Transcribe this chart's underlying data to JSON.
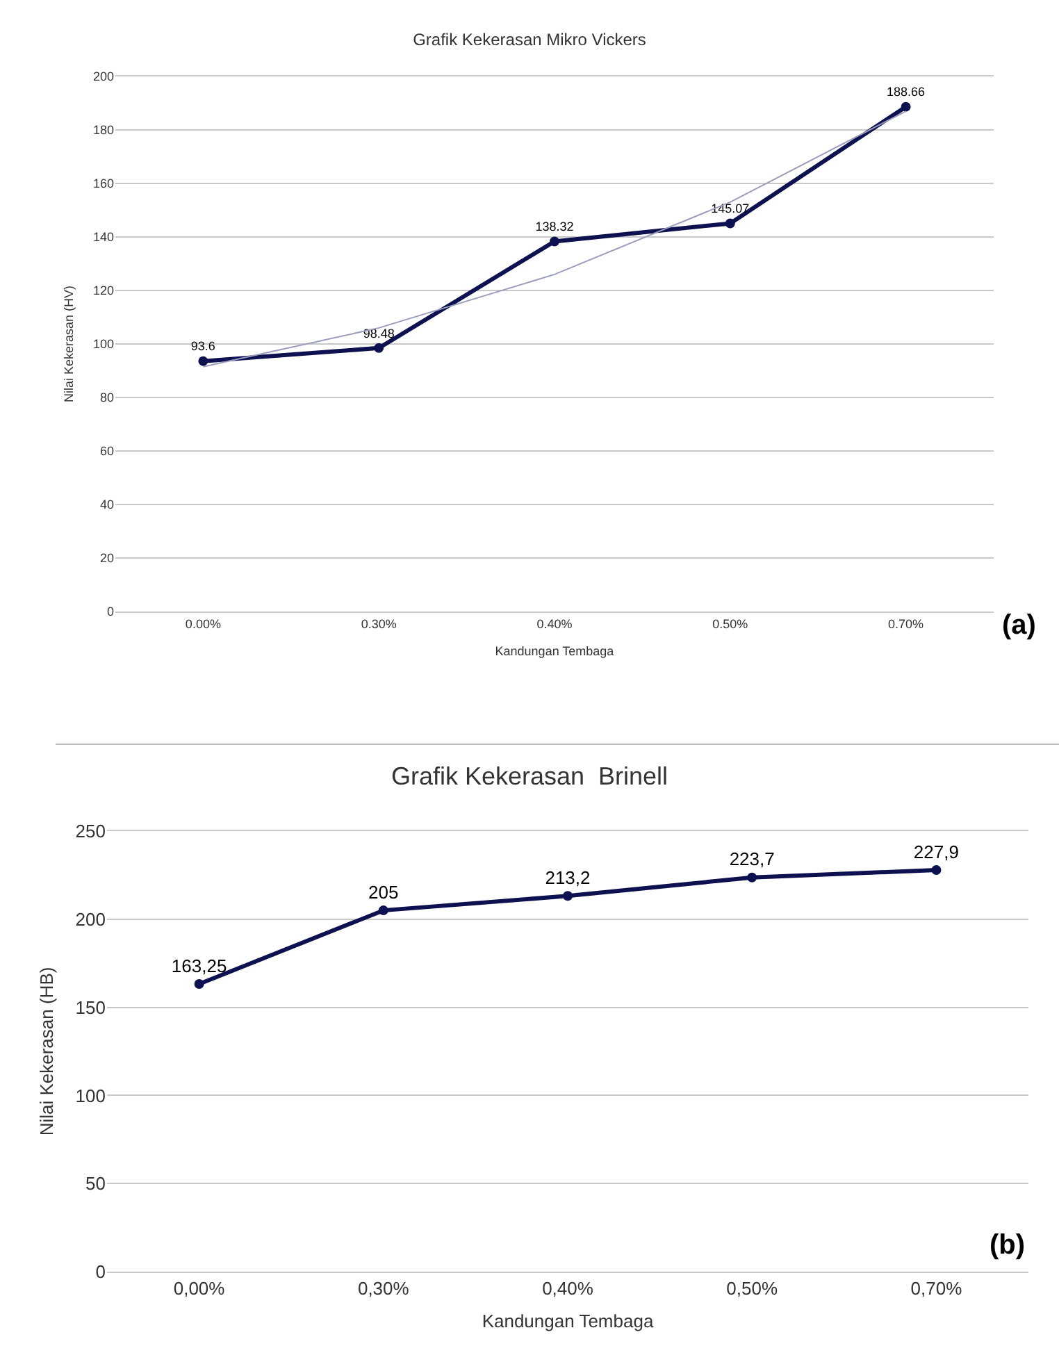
{
  "chart_data": [
    {
      "type": "line",
      "title": "Grafik Kekerasan Mikro Vickers",
      "xlabel": "Kandungan Tembaga",
      "ylabel": "Nilai Kekerasan (HV)",
      "categories": [
        "0.00%",
        "0.30%",
        "0.40%",
        "0.50%",
        "0.70%"
      ],
      "ylim": [
        0,
        200
      ],
      "yticks": [
        0,
        20,
        40,
        60,
        80,
        100,
        120,
        140,
        160,
        180,
        200
      ],
      "grid": "y",
      "series": [
        {
          "color": "#0d1150",
          "values": [
            93.6,
            98.48,
            138.32,
            145.07,
            188.66
          ],
          "marker": "circle",
          "data_labels": true
        },
        {
          "color": "#9a9cbc",
          "values": [
            91.5,
            106,
            126,
            153,
            187
          ],
          "marker": "none"
        }
      ],
      "annotations": [
        "(a)"
      ]
    },
    {
      "type": "line",
      "title": "Grafik Kekerasan  Brinell",
      "xlabel": "Kandungan Tembaga",
      "ylabel": "Nilai Kekerasan (HB)",
      "categories": [
        "0,00%",
        "0,30%",
        "0,40%",
        "0,50%",
        "0,70%"
      ],
      "ylim": [
        0,
        250
      ],
      "yticks": [
        0,
        50,
        100,
        150,
        200,
        250
      ],
      "grid": "y",
      "series": [
        {
          "color": "#0d1150",
          "values": [
            163.25,
            205,
            213.2,
            223.7,
            227.9
          ],
          "marker": "circle",
          "data_labels": true,
          "value_labels": [
            "163,25",
            "205",
            "213,2",
            "223,7",
            "227,9"
          ]
        }
      ],
      "annotations": [
        "(b)"
      ]
    }
  ]
}
